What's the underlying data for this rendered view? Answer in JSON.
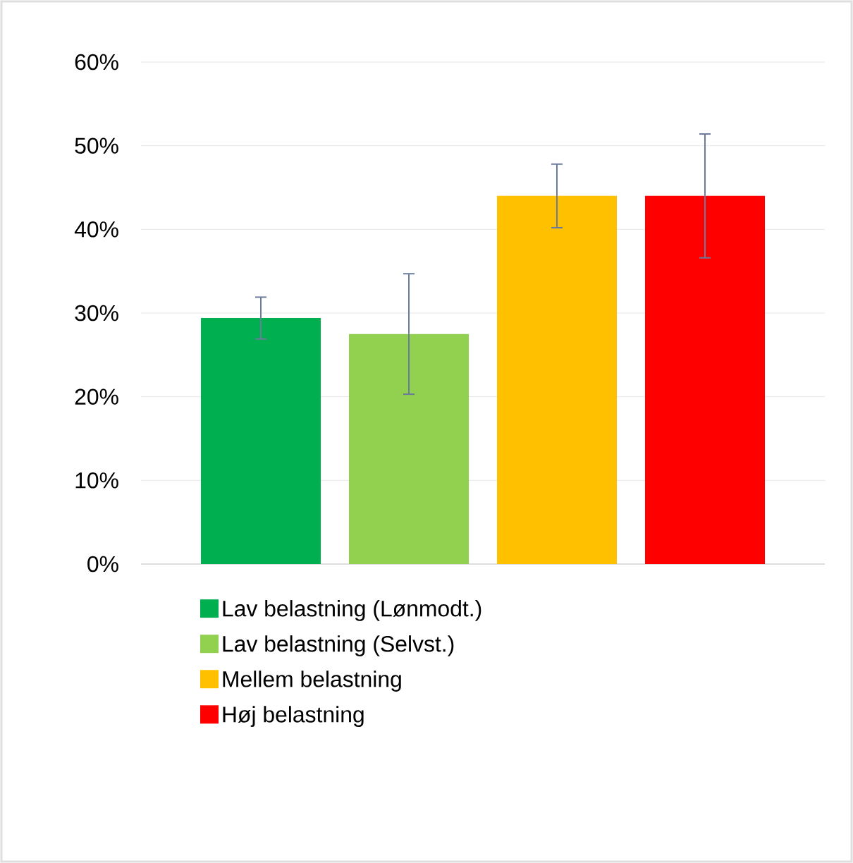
{
  "chart_data": {
    "type": "bar",
    "categories": [
      null
    ],
    "series": [
      {
        "name": "Lav belastning (Lønmodt.)",
        "color": "#00b050",
        "values": [
          29.4
        ],
        "errors": [
          2.5
        ]
      },
      {
        "name": "Lav belastning (Selvst.)",
        "color": "#92d050",
        "values": [
          27.5
        ],
        "errors": [
          7.2
        ]
      },
      {
        "name": "Mellem belastning",
        "color": "#ffc000",
        "values": [
          44.0
        ],
        "errors": [
          3.8
        ]
      },
      {
        "name": "Høj belastning",
        "color": "#ff0000",
        "values": [
          44.0
        ],
        "errors": [
          7.4
        ]
      }
    ],
    "ylim": [
      0,
      60
    ],
    "yticks": [
      {
        "value": 0,
        "label": "0%"
      },
      {
        "value": 10,
        "label": "10%"
      },
      {
        "value": 20,
        "label": "20%"
      },
      {
        "value": 30,
        "label": "30%"
      },
      {
        "value": 40,
        "label": "40%"
      },
      {
        "value": 50,
        "label": "50%"
      },
      {
        "value": 60,
        "label": "60%"
      }
    ],
    "grid": "y",
    "legend": "bottom"
  }
}
